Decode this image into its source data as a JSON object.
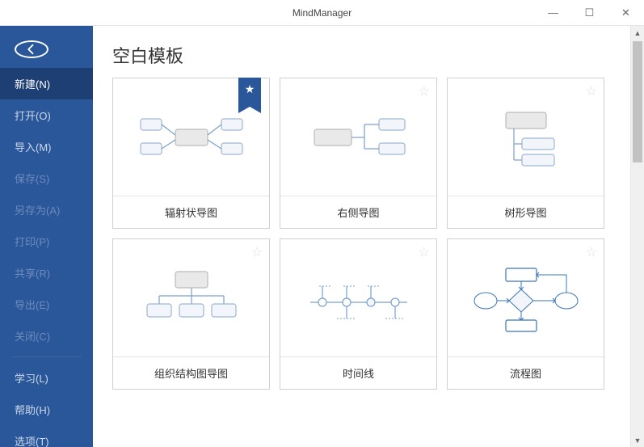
{
  "app": {
    "title": "MindManager"
  },
  "sidebar": {
    "items": [
      {
        "label": "新建(N)",
        "active": true
      },
      {
        "label": "打开(O)"
      },
      {
        "label": "导入(M)"
      },
      {
        "label": "保存(S)",
        "disabled": true
      },
      {
        "label": "另存为(A)",
        "disabled": true
      },
      {
        "label": "打印(P)",
        "disabled": true
      },
      {
        "label": "共享(R)",
        "disabled": true
      },
      {
        "label": "导出(E)",
        "disabled": true
      },
      {
        "label": "关闭(C)",
        "disabled": true
      },
      {
        "divider": true
      },
      {
        "label": "学习(L)"
      },
      {
        "label": "帮助(H)"
      },
      {
        "label": "选项(T)"
      }
    ]
  },
  "content": {
    "section_title": "空白模板",
    "templates": [
      {
        "label": "辐射状导图",
        "favorite": true,
        "preview": "radial"
      },
      {
        "label": "右侧导图",
        "preview": "right"
      },
      {
        "label": "树形导图",
        "preview": "tree"
      },
      {
        "label": "组织结构图导图",
        "preview": "org"
      },
      {
        "label": "时间线",
        "preview": "timeline"
      },
      {
        "label": "流程图",
        "preview": "flowchart"
      }
    ]
  },
  "colors": {
    "sidebar_bg": "#2a579a",
    "sidebar_active": "#1e3f73",
    "node_fill": "#f2f5fa",
    "node_main": "#e9e9e9",
    "node_stroke": "#9fb6d4",
    "line": "#7aa0cc",
    "flow_accent": "#3a75b6"
  }
}
